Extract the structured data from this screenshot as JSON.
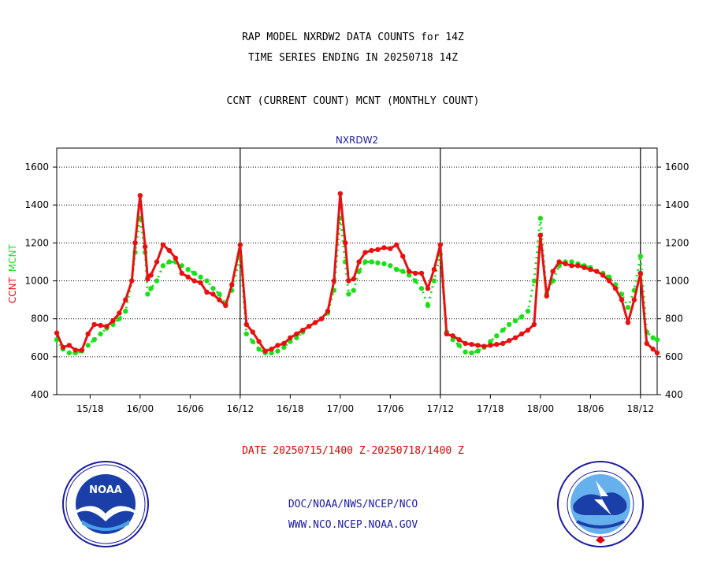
{
  "header": {
    "title_line1": "RAP MODEL NXRDW2 DATA COUNTS for 14Z",
    "title_line2": "TIME SERIES ENDING IN 20250718 14Z",
    "subtitle": "CCNT (CURRENT COUNT) MCNT (MONTHLY COUNT)"
  },
  "footer": {
    "date_range": "DATE 20250715/1400 Z-20250718/1400 Z",
    "org_line": "DOC/NOAA/NWS/NCEP/NCO",
    "url_line": "WWW.NCO.NCEP.NOAA.GOV",
    "noaa_logo": "noaa-seal",
    "nws_logo": "nws-seal"
  },
  "colors": {
    "ccnt": "#e81010",
    "mcnt": "#19e019",
    "station": "#1a1aa6",
    "footer_text": "#1a1aa6",
    "date_text": "#e00000"
  },
  "chart_data": {
    "type": "line",
    "title": "NXRDW2",
    "ylabel_ccnt": "CCNT",
    "ylabel_mcnt": "MCNT",
    "ylim": [
      400,
      1700
    ],
    "y_ticks": [
      400,
      600,
      800,
      1000,
      1200,
      1400,
      1600
    ],
    "x_range_hours": [
      0,
      72
    ],
    "x_ticks": [
      {
        "t": 4,
        "label": "15/18"
      },
      {
        "t": 10,
        "label": "16/00"
      },
      {
        "t": 16,
        "label": "16/06"
      },
      {
        "t": 22,
        "label": "16/12"
      },
      {
        "t": 28,
        "label": "16/18"
      },
      {
        "t": 34,
        "label": "17/00"
      },
      {
        "t": 40,
        "label": "17/06"
      },
      {
        "t": 46,
        "label": "17/12"
      },
      {
        "t": 52,
        "label": "17/18"
      },
      {
        "t": 58,
        "label": "18/00"
      },
      {
        "t": 64,
        "label": "18/06"
      },
      {
        "t": 70,
        "label": "18/12"
      }
    ],
    "day_dividers": [
      22,
      46,
      70
    ],
    "grid": true,
    "series": [
      {
        "name": "CCNT",
        "points": [
          [
            0,
            725
          ],
          [
            0.75,
            650
          ],
          [
            1.5,
            660
          ],
          [
            2.25,
            635
          ],
          [
            3,
            635
          ],
          [
            3.75,
            720
          ],
          [
            4.5,
            770
          ],
          [
            5.25,
            765
          ],
          [
            6,
            760
          ],
          [
            6.75,
            790
          ],
          [
            7.5,
            830
          ],
          [
            8.25,
            900
          ],
          [
            9,
            1000
          ],
          [
            9.4,
            1200
          ],
          [
            10,
            1450
          ],
          [
            10.6,
            1180
          ],
          [
            10.9,
            1010
          ],
          [
            11.3,
            1030
          ],
          [
            12,
            1100
          ],
          [
            12.75,
            1190
          ],
          [
            13.5,
            1160
          ],
          [
            14.25,
            1120
          ],
          [
            15,
            1040
          ],
          [
            15.75,
            1020
          ],
          [
            16.5,
            1000
          ],
          [
            17.25,
            990
          ],
          [
            18,
            940
          ],
          [
            18.75,
            930
          ],
          [
            19.5,
            900
          ],
          [
            20.25,
            870
          ],
          [
            21,
            980
          ],
          [
            22,
            1190
          ],
          [
            22.75,
            770
          ],
          [
            23.5,
            730
          ],
          [
            24.25,
            680
          ],
          [
            25,
            630
          ],
          [
            25.75,
            640
          ],
          [
            26.5,
            660
          ],
          [
            27.25,
            670
          ],
          [
            28,
            700
          ],
          [
            28.75,
            720
          ],
          [
            29.5,
            740
          ],
          [
            30.25,
            760
          ],
          [
            31,
            780
          ],
          [
            31.75,
            800
          ],
          [
            32.5,
            840
          ],
          [
            33.25,
            1000
          ],
          [
            34,
            1460
          ],
          [
            34.6,
            1200
          ],
          [
            35,
            1000
          ],
          [
            35.6,
            1010
          ],
          [
            36.25,
            1100
          ],
          [
            37,
            1150
          ],
          [
            37.75,
            1160
          ],
          [
            38.5,
            1165
          ],
          [
            39.25,
            1175
          ],
          [
            40,
            1170
          ],
          [
            40.75,
            1190
          ],
          [
            41.5,
            1130
          ],
          [
            42.25,
            1050
          ],
          [
            43,
            1040
          ],
          [
            43.75,
            1040
          ],
          [
            44.5,
            960
          ],
          [
            45.25,
            1060
          ],
          [
            46,
            1190
          ],
          [
            46.75,
            720
          ],
          [
            47.5,
            710
          ],
          [
            48.25,
            690
          ],
          [
            49,
            670
          ],
          [
            49.75,
            665
          ],
          [
            50.5,
            660
          ],
          [
            51.25,
            655
          ],
          [
            52,
            660
          ],
          [
            52.75,
            665
          ],
          [
            53.5,
            670
          ],
          [
            54.25,
            685
          ],
          [
            55,
            700
          ],
          [
            55.75,
            720
          ],
          [
            56.5,
            740
          ],
          [
            57.25,
            770
          ],
          [
            58,
            1240
          ],
          [
            58.75,
            920
          ],
          [
            59.5,
            1050
          ],
          [
            60.25,
            1100
          ],
          [
            61,
            1090
          ],
          [
            61.75,
            1080
          ],
          [
            62.5,
            1080
          ],
          [
            63.25,
            1070
          ],
          [
            64,
            1060
          ],
          [
            64.75,
            1050
          ],
          [
            65.5,
            1030
          ],
          [
            66.25,
            1000
          ],
          [
            67,
            960
          ],
          [
            67.75,
            900
          ],
          [
            68.5,
            780
          ],
          [
            69.25,
            900
          ],
          [
            70,
            1040
          ],
          [
            70.75,
            670
          ],
          [
            71.5,
            640
          ],
          [
            72,
            620
          ]
        ]
      },
      {
        "name": "MCNT",
        "points": [
          [
            0,
            690
          ],
          [
            0.75,
            640
          ],
          [
            1.5,
            620
          ],
          [
            2.25,
            620
          ],
          [
            3,
            630
          ],
          [
            3.75,
            660
          ],
          [
            4.5,
            690
          ],
          [
            5.25,
            720
          ],
          [
            6,
            750
          ],
          [
            6.75,
            770
          ],
          [
            7.5,
            800
          ],
          [
            8.25,
            840
          ],
          [
            9,
            1000
          ],
          [
            9.4,
            1150
          ],
          [
            10,
            1330
          ],
          [
            10.6,
            1150
          ],
          [
            10.9,
            930
          ],
          [
            11.3,
            960
          ],
          [
            12,
            1000
          ],
          [
            12.75,
            1080
          ],
          [
            13.5,
            1100
          ],
          [
            14.25,
            1100
          ],
          [
            15,
            1080
          ],
          [
            15.75,
            1060
          ],
          [
            16.5,
            1040
          ],
          [
            17.25,
            1020
          ],
          [
            18,
            1000
          ],
          [
            18.75,
            960
          ],
          [
            19.5,
            930
          ],
          [
            20.25,
            880
          ],
          [
            21,
            950
          ],
          [
            22,
            1130
          ],
          [
            22.75,
            720
          ],
          [
            23.5,
            680
          ],
          [
            24.25,
            640
          ],
          [
            25,
            620
          ],
          [
            25.75,
            620
          ],
          [
            26.5,
            630
          ],
          [
            27.25,
            650
          ],
          [
            28,
            680
          ],
          [
            28.75,
            700
          ],
          [
            29.5,
            730
          ],
          [
            30.25,
            760
          ],
          [
            31,
            780
          ],
          [
            31.75,
            800
          ],
          [
            32.5,
            830
          ],
          [
            33.25,
            950
          ],
          [
            34,
            1330
          ],
          [
            34.6,
            1100
          ],
          [
            35,
            930
          ],
          [
            35.6,
            950
          ],
          [
            36.25,
            1050
          ],
          [
            37,
            1100
          ],
          [
            37.75,
            1100
          ],
          [
            38.5,
            1095
          ],
          [
            39.25,
            1090
          ],
          [
            40,
            1080
          ],
          [
            40.75,
            1060
          ],
          [
            41.5,
            1050
          ],
          [
            42.25,
            1030
          ],
          [
            43,
            1000
          ],
          [
            43.75,
            960
          ],
          [
            44.5,
            870
          ],
          [
            45.25,
            1000
          ],
          [
            46,
            1140
          ],
          [
            46.75,
            730
          ],
          [
            47.5,
            690
          ],
          [
            48.25,
            660
          ],
          [
            49,
            625
          ],
          [
            49.75,
            620
          ],
          [
            50.5,
            630
          ],
          [
            51.25,
            650
          ],
          [
            52,
            680
          ],
          [
            52.75,
            710
          ],
          [
            53.5,
            740
          ],
          [
            54.25,
            770
          ],
          [
            55,
            790
          ],
          [
            55.75,
            810
          ],
          [
            56.5,
            840
          ],
          [
            57.25,
            1000
          ],
          [
            58,
            1330
          ],
          [
            58.75,
            930
          ],
          [
            59.5,
            1000
          ],
          [
            60.25,
            1080
          ],
          [
            61,
            1100
          ],
          [
            61.75,
            1100
          ],
          [
            62.5,
            1090
          ],
          [
            63.25,
            1080
          ],
          [
            64,
            1070
          ],
          [
            64.75,
            1050
          ],
          [
            65.5,
            1040
          ],
          [
            66.25,
            1020
          ],
          [
            67,
            980
          ],
          [
            67.75,
            930
          ],
          [
            68.5,
            860
          ],
          [
            69.25,
            950
          ],
          [
            70,
            1130
          ],
          [
            70.75,
            730
          ],
          [
            71.5,
            700
          ],
          [
            72,
            690
          ]
        ]
      }
    ]
  }
}
